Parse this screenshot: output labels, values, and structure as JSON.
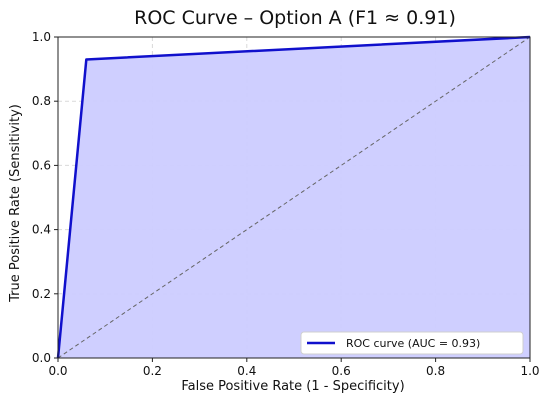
{
  "chart_data": {
    "type": "line",
    "title": "ROC Curve – Option A (F1 ≈ 0.91)",
    "xlabel": "False Positive Rate (1 - Specificity)",
    "ylabel": "True Positive Rate (Sensitivity)",
    "xlim": [
      0.0,
      1.0
    ],
    "ylim": [
      0.0,
      1.0
    ],
    "x_ticks": [
      0.0,
      0.2,
      0.4,
      0.6,
      0.8,
      1.0
    ],
    "y_ticks": [
      0.0,
      0.2,
      0.4,
      0.6,
      0.8,
      1.0
    ],
    "x_tick_labels": [
      "0.0",
      "0.2",
      "0.4",
      "0.6",
      "0.8",
      "1.0"
    ],
    "y_tick_labels": [
      "0.0",
      "0.2",
      "0.4",
      "0.6",
      "0.8",
      "1.0"
    ],
    "grid": true,
    "legend_placement": "bottom-right",
    "series": [
      {
        "name": "ROC curve (AUC = 0.93)",
        "x": [
          0.0,
          0.06,
          1.0
        ],
        "y": [
          0.0,
          0.93,
          1.0
        ],
        "style": "solid",
        "color": "#1010cc",
        "fill": "#ccccff"
      },
      {
        "x": [
          0.0,
          1.0
        ],
        "y": [
          0.0,
          1.0
        ],
        "style": "dashed",
        "color": "#666666"
      }
    ]
  }
}
